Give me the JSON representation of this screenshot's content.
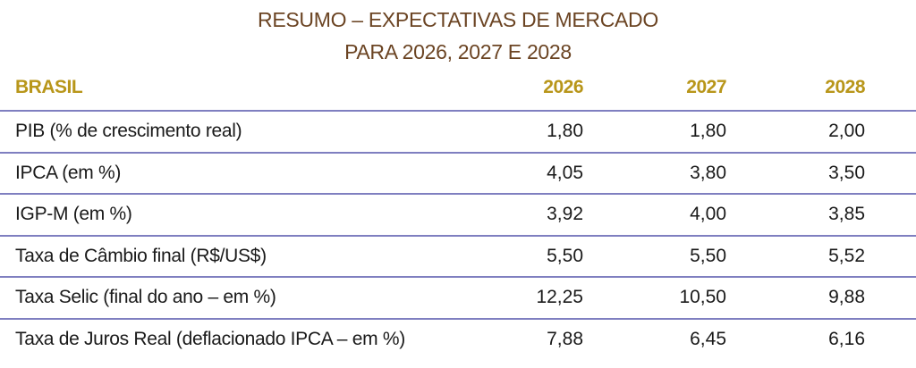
{
  "title": {
    "line1": "RESUMO – EXPECTATIVAS DE MERCADO",
    "line2": "PARA 2026, 2027 E 2028"
  },
  "header": {
    "label": "BRASIL",
    "years": [
      "2026",
      "2027",
      "2028"
    ]
  },
  "rows": [
    {
      "label": "PIB (% de crescimento real)",
      "values": [
        "1,80",
        "1,80",
        "2,00"
      ]
    },
    {
      "label": "IPCA (em %)",
      "values": [
        "4,05",
        "3,80",
        "3,50"
      ]
    },
    {
      "label": "IGP-M (em %)",
      "values": [
        "3,92",
        "4,00",
        "3,85"
      ]
    },
    {
      "label": "Taxa de Câmbio final (R$/US$)",
      "values": [
        "5,50",
        "5,50",
        "5,52"
      ]
    },
    {
      "label": "Taxa Selic (final do ano – em %)",
      "values": [
        "12,25",
        "10,50",
        "9,88"
      ]
    },
    {
      "label": "Taxa de Juros Real (deflacionado IPCA – em %)",
      "values": [
        "7,88",
        "6,45",
        "6,16"
      ]
    }
  ],
  "colors": {
    "title": "#6b4423",
    "header": "#b8961a",
    "divider": "#7f7fc0"
  }
}
